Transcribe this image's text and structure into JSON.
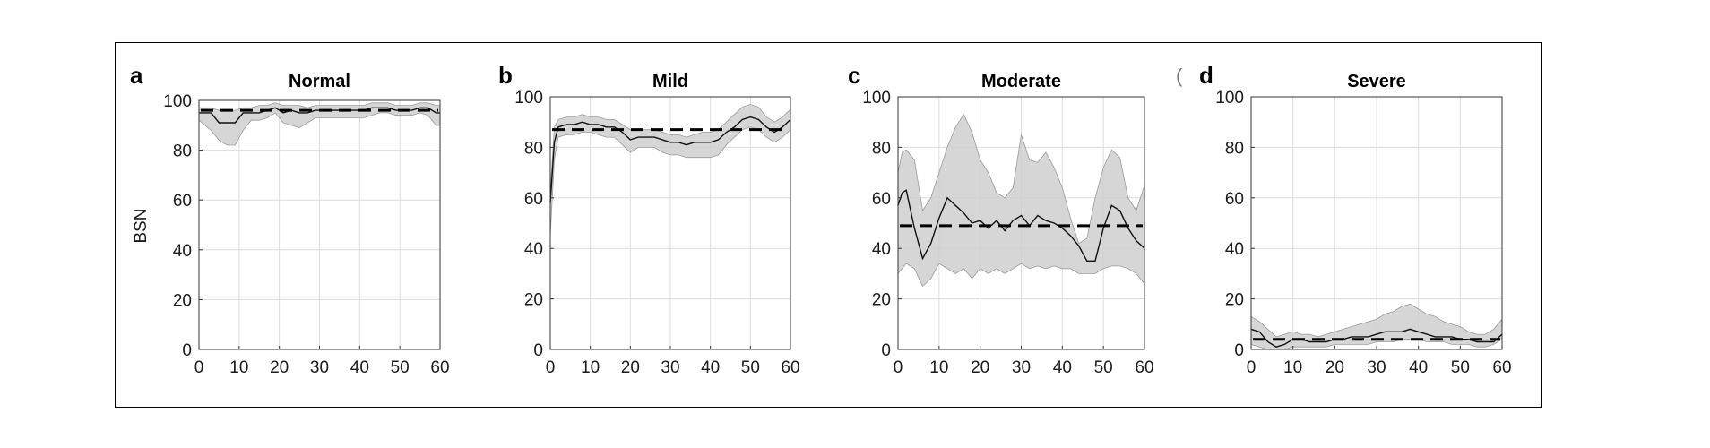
{
  "chart_data": [
    {
      "type": "line",
      "letter": "a",
      "title": "Normal",
      "ylabel": "BSN",
      "xlabel": "",
      "xlim": [
        0,
        60
      ],
      "ylim": [
        0,
        100
      ],
      "xticks": [
        0,
        10,
        20,
        30,
        40,
        50,
        60
      ],
      "yticks": [
        0,
        20,
        40,
        60,
        80,
        100
      ],
      "grid": true,
      "mean_line": 96,
      "x": [
        0,
        3,
        5,
        7,
        9,
        11,
        13,
        15,
        17,
        19,
        21,
        23,
        25,
        27,
        29,
        31,
        33,
        35,
        37,
        39,
        41,
        43,
        45,
        47,
        49,
        51,
        53,
        55,
        57,
        59,
        60
      ],
      "median": [
        95,
        95,
        91,
        91,
        91,
        95,
        95,
        95,
        96,
        97,
        95,
        96,
        95,
        95,
        96,
        96,
        96,
        96,
        96,
        96,
        96,
        97,
        97,
        97,
        96,
        96,
        96,
        97,
        97,
        95,
        95
      ],
      "lower": [
        92,
        88,
        84,
        82,
        82,
        88,
        92,
        92,
        93,
        95,
        91,
        90,
        89,
        91,
        93,
        93,
        93,
        93,
        93,
        93,
        93,
        94,
        95,
        95,
        94,
        94,
        94,
        95,
        94,
        90,
        90
      ],
      "upper": [
        97,
        97,
        96,
        96,
        96,
        97,
        97,
        98,
        98,
        99,
        98,
        98,
        98,
        97,
        98,
        98,
        98,
        98,
        98,
        98,
        98,
        99,
        99,
        99,
        98,
        98,
        98,
        99,
        99,
        98,
        98
      ]
    },
    {
      "type": "line",
      "letter": "b",
      "title": "Mild",
      "ylabel": "",
      "xlabel": "",
      "xlim": [
        0,
        60
      ],
      "ylim": [
        0,
        100
      ],
      "xticks": [
        0,
        10,
        20,
        30,
        40,
        50,
        60
      ],
      "yticks": [
        0,
        20,
        40,
        60,
        80,
        100
      ],
      "grid": true,
      "mean_line": 87,
      "x": [
        0,
        1,
        2,
        4,
        6,
        8,
        10,
        12,
        14,
        16,
        18,
        20,
        22,
        24,
        26,
        28,
        30,
        32,
        34,
        36,
        38,
        40,
        42,
        44,
        46,
        48,
        50,
        52,
        54,
        56,
        58,
        60
      ],
      "median": [
        58,
        82,
        88,
        89,
        89,
        90,
        89,
        89,
        88,
        88,
        86,
        83,
        84,
        84,
        84,
        83,
        82,
        82,
        81,
        82,
        82,
        82,
        83,
        86,
        88,
        91,
        92,
        91,
        88,
        86,
        88,
        91
      ],
      "lower": [
        45,
        75,
        84,
        85,
        85,
        86,
        86,
        85,
        84,
        84,
        81,
        78,
        80,
        80,
        80,
        78,
        77,
        77,
        76,
        76,
        76,
        76,
        77,
        81,
        84,
        87,
        88,
        87,
        84,
        82,
        84,
        87
      ],
      "upper": [
        62,
        88,
        91,
        92,
        92,
        93,
        92,
        92,
        91,
        91,
        89,
        87,
        87,
        87,
        87,
        86,
        85,
        85,
        84,
        85,
        86,
        86,
        87,
        90,
        93,
        96,
        97,
        96,
        92,
        90,
        92,
        95
      ]
    },
    {
      "type": "line",
      "letter": "c",
      "title": "Moderate",
      "ylabel": "",
      "xlabel": "",
      "xlim": [
        0,
        60
      ],
      "ylim": [
        0,
        100
      ],
      "xticks": [
        0,
        10,
        20,
        30,
        40,
        50,
        60
      ],
      "yticks": [
        0,
        20,
        40,
        60,
        80,
        100
      ],
      "grid": true,
      "mean_line": 49,
      "x": [
        0,
        1,
        2,
        4,
        6,
        8,
        10,
        12,
        14,
        16,
        18,
        20,
        22,
        24,
        26,
        28,
        30,
        32,
        34,
        36,
        38,
        40,
        42,
        44,
        46,
        48,
        50,
        52,
        54,
        56,
        58,
        60
      ],
      "median": [
        57,
        62,
        63,
        48,
        36,
        42,
        52,
        60,
        57,
        54,
        50,
        51,
        48,
        51,
        47,
        51,
        53,
        49,
        53,
        51,
        50,
        48,
        45,
        41,
        35,
        35,
        48,
        57,
        55,
        48,
        43,
        40
      ],
      "lower": [
        30,
        32,
        34,
        32,
        25,
        28,
        34,
        32,
        30,
        32,
        28,
        32,
        30,
        32,
        30,
        32,
        34,
        32,
        33,
        32,
        33,
        32,
        32,
        30,
        30,
        30,
        32,
        33,
        33,
        32,
        30,
        26
      ],
      "upper": [
        70,
        78,
        79,
        75,
        55,
        60,
        70,
        80,
        88,
        93,
        86,
        75,
        70,
        62,
        60,
        64,
        85,
        75,
        74,
        78,
        72,
        64,
        52,
        42,
        44,
        60,
        72,
        79,
        76,
        60,
        55,
        65
      ]
    },
    {
      "type": "line",
      "letter": "d",
      "title": "Severe",
      "ylabel": "",
      "xlabel": "",
      "xlim": [
        0,
        60
      ],
      "ylim": [
        0,
        100
      ],
      "xticks": [
        0,
        10,
        20,
        30,
        40,
        50,
        60
      ],
      "yticks": [
        0,
        20,
        40,
        60,
        80,
        100
      ],
      "grid": true,
      "mean_line": 4,
      "x": [
        0,
        2,
        4,
        6,
        8,
        10,
        12,
        14,
        16,
        18,
        20,
        22,
        24,
        26,
        28,
        30,
        32,
        34,
        36,
        38,
        40,
        42,
        44,
        46,
        48,
        50,
        52,
        54,
        56,
        58,
        60
      ],
      "median": [
        8,
        7,
        3,
        1,
        2,
        4,
        4,
        3,
        3,
        3,
        4,
        4,
        5,
        5,
        5,
        6,
        7,
        7,
        7,
        8,
        7,
        6,
        5,
        5,
        5,
        4,
        4,
        3,
        3,
        3,
        6
      ],
      "lower": [
        2,
        1,
        0,
        0,
        0,
        1,
        1,
        1,
        1,
        1,
        2,
        2,
        2,
        2,
        2,
        3,
        3,
        3,
        4,
        4,
        4,
        3,
        3,
        3,
        2,
        2,
        2,
        1,
        1,
        2,
        4
      ],
      "upper": [
        13,
        11,
        8,
        5,
        6,
        7,
        6,
        6,
        5,
        6,
        7,
        8,
        9,
        10,
        11,
        12,
        14,
        15,
        17,
        18,
        16,
        14,
        13,
        11,
        10,
        9,
        7,
        6,
        6,
        8,
        12
      ]
    }
  ],
  "stray_mark": "("
}
